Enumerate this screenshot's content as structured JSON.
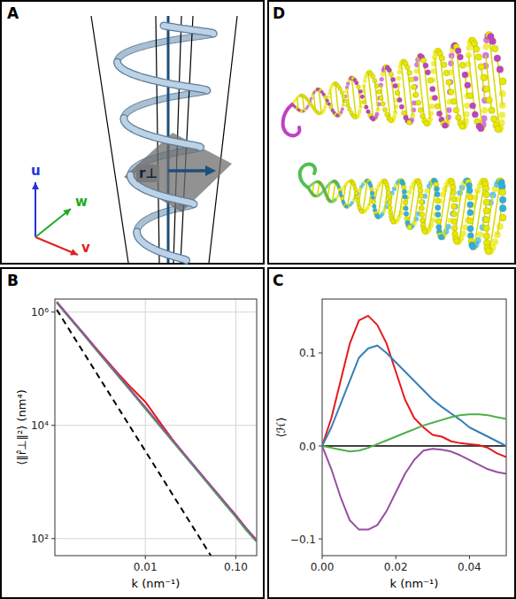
{
  "panels": [
    {
      "label": "A",
      "vectors": [
        {
          "label": "u",
          "color": "#2233dd"
        },
        {
          "label": "v",
          "color": "#dd2222"
        },
        {
          "label": "w",
          "color": "#22aa22"
        }
      ],
      "vector_label": "r⊥"
    },
    {
      "label": "D"
    }
  ],
  "chart_data": [
    {
      "type": "line",
      "label": "B",
      "x_label": "k (nm⁻¹)",
      "y_label": "⟨‖r̂⊥‖²⟩ (nm⁴)",
      "log": true,
      "grid": true,
      "xlim": [
        0.001,
        0.17
      ],
      "ylim": [
        50,
        1700000
      ],
      "xticks": [
        0.01,
        {
          "value": 0.1,
          "label": "0.10"
        }
      ],
      "yticks": [
        {
          "value": 100,
          "label": "10²"
        },
        {
          "value": 10000,
          "label": "10⁴"
        },
        {
          "value": 1000000,
          "label": "10⁶"
        }
      ],
      "x": [
        0.00105,
        0.0015,
        0.002,
        0.003,
        0.005,
        0.007,
        0.01,
        0.015,
        0.02,
        0.03,
        0.05,
        0.07,
        0.1,
        0.13,
        0.17
      ],
      "series": [
        {
          "color": "#e41a1c",
          "values": [
            1500000,
            760000,
            450000,
            210000,
            82000,
            46000,
            26000,
            10500,
            5600,
            2500,
            950,
            500,
            260,
            150,
            95
          ]
        },
        {
          "color": "#377eb8",
          "values": [
            1480000,
            750000,
            440000,
            200000,
            77000,
            40000,
            20500,
            9400,
            5400,
            2500,
            930,
            480,
            250,
            145,
            90
          ]
        },
        {
          "color": "#4daf4a",
          "values": [
            1450000,
            740000,
            430000,
            195000,
            74000,
            39000,
            19500,
            9000,
            5200,
            2400,
            900,
            470,
            240,
            140,
            88
          ]
        },
        {
          "color": "#984ea3",
          "values": [
            1520000,
            770000,
            445000,
            205000,
            78000,
            41000,
            21000,
            9500,
            5500,
            2550,
            960,
            510,
            255,
            155,
            92
          ]
        },
        {
          "color": "#000000",
          "line_style": "dashed",
          "x": [
            0.00105,
            0.053
          ],
          "values": [
            1100000,
            50
          ]
        }
      ]
    },
    {
      "type": "line",
      "label": "C",
      "x_label": "k (nm⁻¹)",
      "y_label": "⟨ℋ⟩",
      "grid": false,
      "xlim": [
        0,
        0.05
      ],
      "ylim": [
        -0.118,
        0.158
      ],
      "xticks": [
        {
          "value": 0,
          "label": "0.00"
        },
        0.02,
        0.04
      ],
      "yticks": [
        {
          "value": -0.1,
          "label": "−0.1"
        },
        {
          "value": 0,
          "label": "0.0"
        },
        0.1
      ],
      "reference_lines": [
        {
          "value": 0,
          "color": "#000000"
        }
      ],
      "x": [
        0,
        0.0025,
        0.005,
        0.0075,
        0.01,
        0.0125,
        0.015,
        0.0175,
        0.02,
        0.0225,
        0.025,
        0.0275,
        0.03,
        0.0325,
        0.035,
        0.0375,
        0.04,
        0.0425,
        0.045,
        0.0475,
        0.05
      ],
      "series": [
        {
          "color": "#e41a1c",
          "values": [
            0,
            0.03,
            0.07,
            0.11,
            0.135,
            0.14,
            0.13,
            0.11,
            0.08,
            0.05,
            0.03,
            0.02,
            0.012,
            0.01,
            0.005,
            0.003,
            0.002,
            0.001,
            -0.002,
            -0.008,
            -0.012
          ]
        },
        {
          "color": "#377eb8",
          "values": [
            0,
            0.02,
            0.045,
            0.07,
            0.095,
            0.105,
            0.108,
            0.1,
            0.09,
            0.08,
            0.07,
            0.06,
            0.05,
            0.042,
            0.035,
            0.028,
            0.02,
            0.015,
            0.01,
            0.005,
            0
          ]
        },
        {
          "color": "#4daf4a",
          "values": [
            0,
            -0.002,
            -0.004,
            -0.006,
            -0.005,
            -0.002,
            0.002,
            0.006,
            0.01,
            0.014,
            0.018,
            0.022,
            0.025,
            0.028,
            0.031,
            0.033,
            0.034,
            0.034,
            0.033,
            0.031,
            0.029
          ]
        },
        {
          "color": "#984ea3",
          "values": [
            0,
            -0.025,
            -0.055,
            -0.08,
            -0.09,
            -0.09,
            -0.085,
            -0.07,
            -0.05,
            -0.03,
            -0.015,
            -0.005,
            -0.003,
            -0.004,
            -0.006,
            -0.01,
            -0.015,
            -0.02,
            -0.025,
            -0.028,
            -0.03
          ]
        }
      ]
    }
  ]
}
